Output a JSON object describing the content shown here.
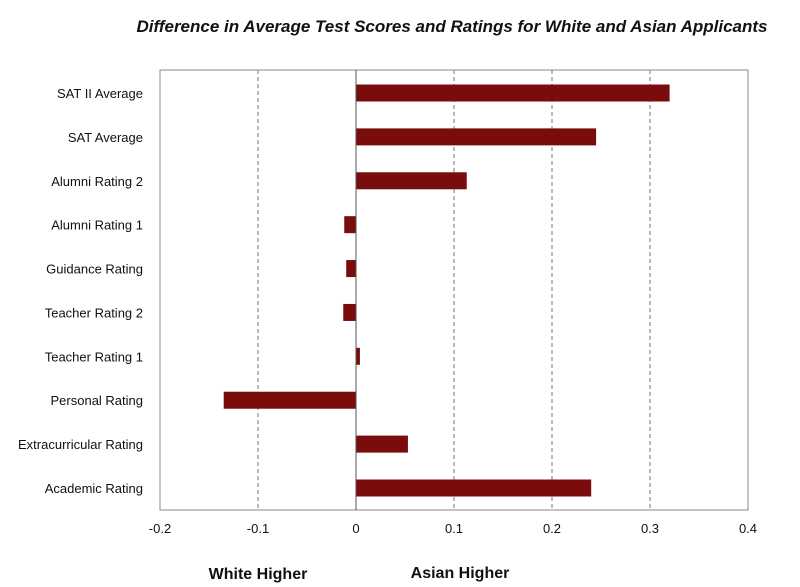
{
  "chart_data": {
    "type": "bar",
    "orientation": "horizontal",
    "title": "Difference in Average Test Scores and Ratings for White and Asian Applicants",
    "categories": [
      "SAT II Average",
      "SAT Average",
      "Alumni Rating 2",
      "Alumni Rating 1",
      "Guidance Rating",
      "Teacher Rating 2",
      "Teacher Rating 1",
      "Personal Rating",
      "Extracurricular Rating",
      "Academic Rating"
    ],
    "values": [
      0.32,
      0.245,
      0.113,
      -0.012,
      -0.01,
      -0.013,
      0.004,
      -0.135,
      0.053,
      0.24
    ],
    "xlim": [
      -0.2,
      0.4
    ],
    "xticks": [
      -0.2,
      -0.1,
      0,
      0.1,
      0.2,
      0.3,
      0.4
    ],
    "xtick_labels": [
      "-0.2",
      "-0.1",
      "0",
      "0.1",
      "0.2",
      "0.3",
      "0.4"
    ],
    "grid": "vertical dashed",
    "bar_color": "#7b0c0c",
    "left_side_label": "White Higher",
    "right_side_label": "Asian Higher"
  }
}
